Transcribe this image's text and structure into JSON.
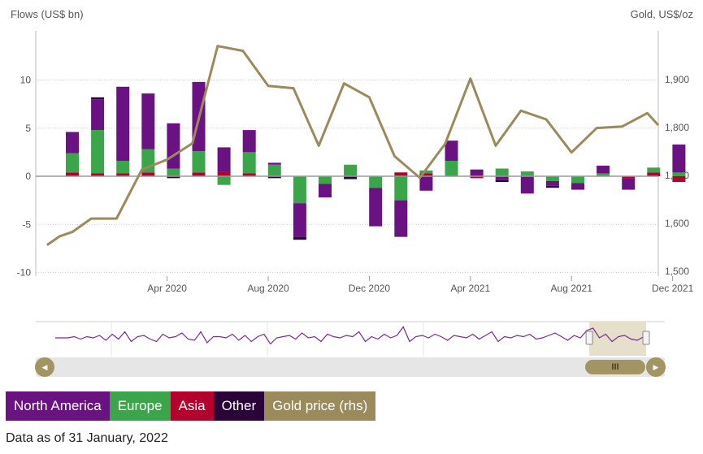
{
  "chart_data": {
    "type": "bar",
    "stacked": true,
    "left_axis_title": "Flows (US$ bn)",
    "right_axis_title": "Gold, US$/oz",
    "y_ticks": [
      "10",
      "5",
      "0",
      "-5",
      "-10"
    ],
    "y_tick_values": [
      10,
      5,
      0,
      -5,
      -10
    ],
    "ylim": [
      -10,
      15
    ],
    "y2_ticks": [
      "1,900",
      "1,800",
      "1,700",
      "1,600",
      "1,500"
    ],
    "y2_tick_values": [
      1900,
      1800,
      1700,
      1600,
      1500
    ],
    "y2lim": [
      1500,
      1930
    ],
    "x_ticks": [
      "Apr 2020",
      "Aug 2020",
      "Dec 2020",
      "Apr 2021",
      "Aug 2021",
      "Dec 2021"
    ],
    "x_tick_index": [
      3.75,
      7.75,
      11.75,
      15.75,
      19.75,
      23.75
    ],
    "categories": [
      "2020-01",
      "2020-02",
      "2020-03",
      "2020-04",
      "2020-05",
      "2020-06",
      "2020-07",
      "2020-08",
      "2020-09",
      "2020-10",
      "2020-11",
      "2020-12",
      "2021-01",
      "2021-02",
      "2021-03",
      "2021-04",
      "2021-05",
      "2021-06",
      "2021-07",
      "2021-08",
      "2021-09",
      "2021-10",
      "2021-11",
      "2021-12",
      "2022-01"
    ],
    "series": [
      {
        "name": "Asia",
        "color": "#b5002d",
        "values": [
          0.4,
          0.3,
          0.3,
          0.4,
          0.0,
          0.4,
          0.5,
          0.3,
          0.0,
          0.0,
          0.0,
          0.0,
          0.0,
          0.4,
          0.3,
          0.0,
          -0.2,
          0.0,
          0.0,
          0.0,
          0.0,
          0.0,
          -0.2,
          0.4,
          -0.6
        ]
      },
      {
        "name": "Europe",
        "color": "#3ba54a",
        "values": [
          2.0,
          4.5,
          1.3,
          2.4,
          0.8,
          2.2,
          -0.9,
          2.2,
          1.2,
          -2.8,
          -0.8,
          1.2,
          -1.2,
          -2.5,
          0.3,
          1.6,
          0.0,
          0.8,
          0.5,
          -0.5,
          -0.7,
          0.3,
          0.0,
          0.5,
          0.4
        ]
      },
      {
        "name": "North America",
        "color": "#6b1283",
        "values": [
          2.2,
          3.2,
          7.7,
          5.8,
          4.7,
          7.2,
          2.5,
          2.3,
          0.2,
          -3.5,
          -1.4,
          0.0,
          -4.0,
          -3.8,
          -1.5,
          2.1,
          0.7,
          -0.4,
          -1.8,
          -0.5,
          -0.7,
          0.8,
          -1.2,
          0.0,
          2.9
        ]
      },
      {
        "name": "Other",
        "color": "#2a0338",
        "values": [
          0.0,
          0.2,
          0.0,
          0.0,
          -0.2,
          0.0,
          0.0,
          0.0,
          -0.2,
          -0.3,
          0.0,
          -0.3,
          0.0,
          0.0,
          0.0,
          0.0,
          0.0,
          -0.2,
          0.0,
          -0.2,
          0.0,
          0.0,
          0.0,
          0.0,
          0.0
        ]
      }
    ],
    "line": {
      "name": "Gold price (rhs)",
      "color": "#9a8a5c",
      "x_index": [
        -1,
        -0.5,
        0,
        0.75,
        1.75,
        2.75,
        3.75,
        4.75,
        5.75,
        6.75,
        7.75,
        8.75,
        9.75,
        10.75,
        11.75,
        12.75,
        13.75,
        14.75,
        15.75,
        16.75,
        17.75,
        18.75,
        19.75,
        20.75,
        21.75,
        22.75,
        23.75,
        24.75
      ],
      "values": [
        1555,
        1573,
        1582,
        1610,
        1610,
        1712,
        1733,
        1767,
        1970,
        1960,
        1887,
        1882,
        1762,
        1892,
        1863,
        1740,
        1695,
        1766,
        1902,
        1762,
        1835,
        1817,
        1748,
        1799,
        1802,
        1830,
        1805,
        1805
      ]
    },
    "legend": [
      "North America",
      "Europe",
      "Asia",
      "Other",
      "Gold price (rhs)"
    ],
    "grid": true
  },
  "legend_items": [
    {
      "label": "North America",
      "color": "#6b1283"
    },
    {
      "label": "Europe",
      "color": "#3ba54a"
    },
    {
      "label": "Asia",
      "color": "#b5002d"
    },
    {
      "label": "Other",
      "color": "#2a0338"
    },
    {
      "label": "Gold price (rhs)",
      "color": "#9a8a5c"
    }
  ],
  "navigator": {
    "series": [
      0.45,
      0.45,
      0.45,
      0.5,
      0.4,
      0.5,
      0.45,
      0.55,
      0.35,
      0.6,
      0.4,
      0.7,
      0.3,
      0.5,
      0.55,
      0.4,
      0.3,
      0.6,
      0.45,
      0.5,
      0.65,
      0.4,
      0.35,
      0.7,
      0.25,
      0.5,
      0.5,
      0.45,
      0.6,
      0.35,
      0.55,
      0.3,
      0.5,
      0.6,
      0.2,
      0.45,
      0.5,
      0.55,
      0.4,
      0.65,
      0.45,
      0.5,
      0.3,
      0.6,
      0.5,
      0.45,
      0.55,
      0.5,
      0.7,
      0.3,
      0.5,
      0.4,
      0.6,
      0.45,
      0.55,
      0.9,
      0.3,
      0.5,
      0.55,
      0.45,
      0.6,
      0.5,
      0.35,
      0.55,
      0.5,
      0.45,
      0.6,
      0.4,
      0.55,
      0.7,
      0.3,
      0.5,
      0.45,
      0.55,
      0.5,
      0.6,
      0.4,
      0.45,
      0.55,
      0.65,
      0.5,
      0.35,
      0.55,
      0.45,
      0.75,
      0.85,
      0.45,
      0.6,
      0.3,
      0.5,
      0.55,
      0.4,
      0.35,
      0.5
    ],
    "selected_from": 0.88,
    "selected_to": 1.0
  },
  "scrollbar": {
    "left_arrow": "◀",
    "right_arrow": "▶",
    "thumb_grip": "III"
  },
  "footnote": "Data as of 31 January, 2022"
}
